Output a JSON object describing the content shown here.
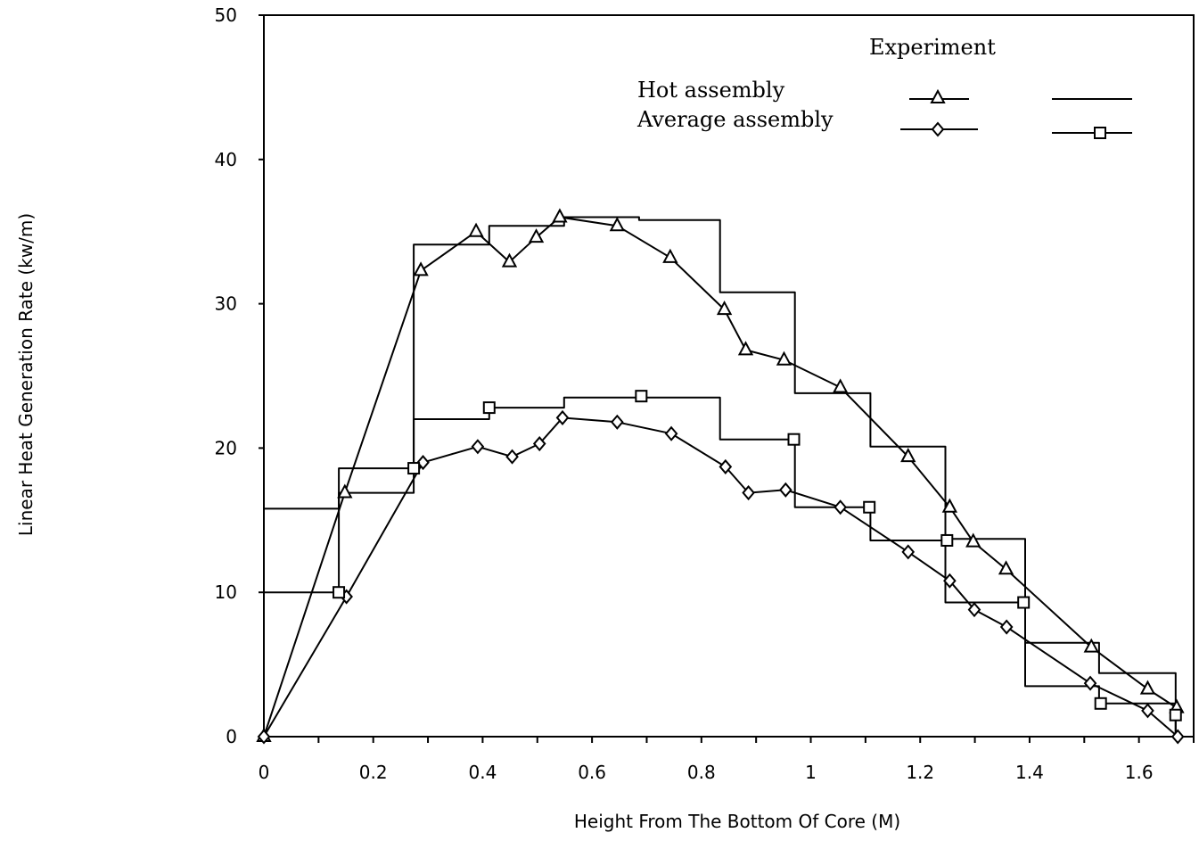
{
  "chart_data": {
    "type": "line",
    "title": "",
    "xlabel": "Height From The Bottom Of Core (M)",
    "ylabel": "Linear Heat Generation Rate (kw/m)",
    "xlim": [
      0,
      1.7
    ],
    "ylim": [
      0,
      50
    ],
    "x_ticks": [
      0,
      0.2,
      0.4,
      0.6,
      0.8,
      1,
      1.2,
      1.4,
      1.6
    ],
    "x_tick_labels": [
      "0",
      "0.2",
      "0.4",
      "0.6",
      "0.8",
      "1",
      "1.2",
      "1.4",
      "1.6"
    ],
    "y_ticks": [
      0,
      10,
      20,
      30,
      40,
      50
    ],
    "y_tick_labels": [
      "0",
      "10",
      "20",
      "30",
      "40",
      "50"
    ],
    "grid": false,
    "legend": {
      "placement": "top-right",
      "header": "Experiment",
      "rows": [
        "Hot assembly",
        "Average assembly"
      ]
    },
    "series": [
      {
        "name": "Hot assembly",
        "style": "line",
        "marker": "triangle",
        "x": [
          0,
          0.148,
          0.287,
          0.388,
          0.449,
          0.498,
          0.541,
          0.646,
          0.743,
          0.842,
          0.881,
          0.951,
          1.054,
          1.178,
          1.254,
          1.297,
          1.357,
          1.513,
          1.616,
          1.669
        ],
        "y": [
          0,
          16.9,
          32.3,
          35.0,
          32.9,
          34.6,
          36.0,
          35.4,
          33.2,
          29.6,
          26.8,
          26.1,
          24.2,
          19.4,
          15.9,
          13.5,
          11.6,
          6.2,
          3.3,
          2.0
        ]
      },
      {
        "name": "Hot assembly",
        "style": "step",
        "marker": "none",
        "x": [
          0,
          0.137,
          0.137,
          0.274,
          0.274,
          0.412,
          0.412,
          0.549,
          0.549,
          0.686,
          0.686,
          0.834,
          0.834,
          0.971,
          0.971,
          1.109,
          1.109,
          1.246,
          1.246,
          1.392,
          1.392,
          1.527,
          1.527,
          1.667,
          1.667
        ],
        "y": [
          15.8,
          15.8,
          16.9,
          16.9,
          34.1,
          34.1,
          35.4,
          35.4,
          36.0,
          36.0,
          35.8,
          35.8,
          30.8,
          30.8,
          23.8,
          23.8,
          20.1,
          20.1,
          13.7,
          13.7,
          6.5,
          6.5,
          4.4,
          4.4,
          0
        ]
      },
      {
        "name": "Average assembly",
        "style": "line",
        "marker": "diamond",
        "x": [
          0,
          0.151,
          0.291,
          0.391,
          0.454,
          0.504,
          0.546,
          0.646,
          0.745,
          0.844,
          0.886,
          0.954,
          1.054,
          1.178,
          1.254,
          1.299,
          1.358,
          1.511,
          1.616,
          1.671
        ],
        "y": [
          0,
          9.7,
          19.0,
          20.1,
          19.4,
          20.3,
          22.1,
          21.8,
          21.0,
          18.7,
          16.9,
          17.1,
          15.9,
          12.8,
          10.8,
          8.8,
          7.6,
          3.7,
          1.8,
          0
        ]
      },
      {
        "name": "Average assembly",
        "style": "step",
        "marker": "square",
        "x": [
          0,
          0.137,
          0.137,
          0.274,
          0.274,
          0.412,
          0.412,
          0.549,
          0.549,
          0.686,
          0.686,
          0.834,
          0.834,
          0.971,
          0.971,
          1.109,
          1.109,
          1.246,
          1.246,
          1.392,
          1.392,
          1.527,
          1.527,
          1.667,
          1.667
        ],
        "y": [
          10.0,
          10.0,
          18.6,
          18.6,
          22.0,
          22.0,
          22.8,
          22.8,
          23.5,
          23.5,
          23.5,
          23.5,
          20.6,
          20.6,
          15.9,
          15.9,
          13.6,
          13.6,
          9.3,
          9.3,
          3.5,
          3.5,
          2.3,
          2.3,
          0
        ],
        "marker_points": [
          [
            0.137,
            10.0
          ],
          [
            0.274,
            18.6
          ],
          [
            0.412,
            22.8
          ],
          [
            0.69,
            23.6
          ],
          [
            0.969,
            20.6
          ],
          [
            1.107,
            15.9
          ],
          [
            1.249,
            13.6
          ],
          [
            1.389,
            9.3
          ],
          [
            1.53,
            2.3
          ],
          [
            1.667,
            1.5
          ]
        ]
      }
    ]
  }
}
